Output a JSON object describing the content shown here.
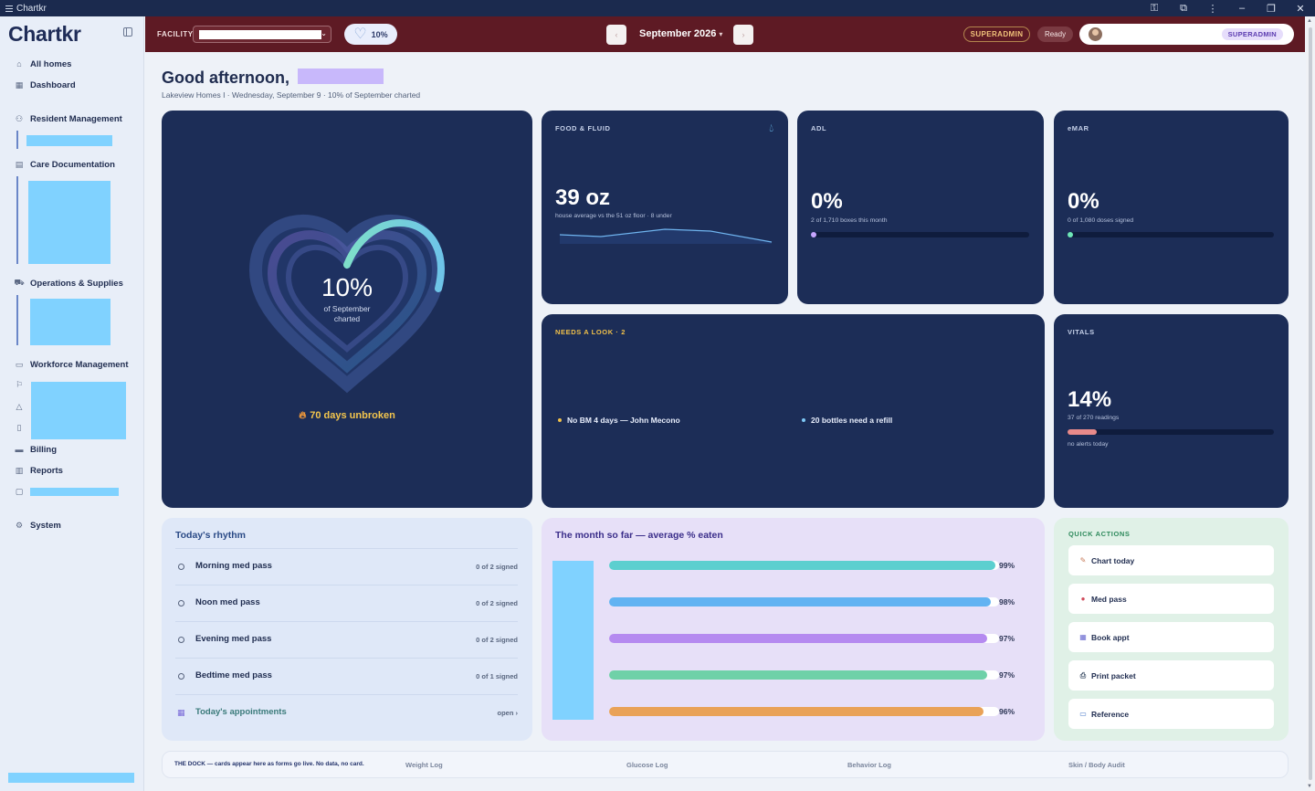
{
  "window": {
    "title": "Chartkr"
  },
  "sidebar": {
    "logo": "Chartkr",
    "items": [
      {
        "label": "All homes",
        "icon": "home-icon"
      },
      {
        "label": "Dashboard",
        "icon": "grid-icon"
      },
      {
        "label": "Resident Management",
        "icon": "users-icon"
      },
      {
        "label": "Care Documentation",
        "icon": "clipboard-icon"
      },
      {
        "label": "Operations & Supplies",
        "icon": "cart-icon"
      },
      {
        "label": "Workforce Management",
        "icon": "briefcase-icon"
      },
      {
        "label": "Billing",
        "icon": "card-icon"
      },
      {
        "label": "Reports",
        "icon": "chart-icon"
      },
      {
        "label": "System",
        "icon": "gear-icon"
      }
    ]
  },
  "topbar": {
    "facility_label": "FACILITY",
    "progress_pct": "10%",
    "month": "September 2026",
    "role": "SUPERADMIN",
    "status": "Ready",
    "user_role": "SUPERADMIN"
  },
  "header": {
    "greeting": "Good afternoon,",
    "subline": "Lakeview Homes I · Wednesday, September 9 · 10% of September charted"
  },
  "hero": {
    "pct": "10%",
    "pct_value": 0.1,
    "caption_line1": "of September",
    "caption_line2": "charted",
    "streak": "70 days unbroken"
  },
  "food": {
    "label": "FOOD & FLUID",
    "value": "39 oz",
    "sub": "house average vs the 51 oz floor · 8 under"
  },
  "adl": {
    "label": "ADL",
    "value": "0%",
    "sub": "2 of 1,710 boxes this month",
    "fill": 0.0,
    "color": "#c7a6ff"
  },
  "emar": {
    "label": "eMAR",
    "value": "0%",
    "sub": "0 of 1,080 doses signed",
    "fill": 0.0,
    "color": "#6ee7b7"
  },
  "needs": {
    "label": "NEEDS A LOOK · 2",
    "items": [
      {
        "text": "No BM 4 days — John Mecono",
        "color": "#f0c04a"
      },
      {
        "text": "20 bottles need a refill",
        "color": "#7ec8f5"
      }
    ]
  },
  "vitals": {
    "label": "VITALS",
    "value": "14%",
    "sub": "37 of 270 readings",
    "fill": 0.14,
    "note": "no alerts today",
    "color": "#e88a8a"
  },
  "rhythm": {
    "title": "Today's rhythm",
    "rows": [
      {
        "label": "Morning med pass",
        "count": "0 of 2 signed"
      },
      {
        "label": "Noon med pass",
        "count": "0 of 2 signed"
      },
      {
        "label": "Evening med pass",
        "count": "0 of 2 signed"
      },
      {
        "label": "Bedtime med pass",
        "count": "0 of 1 signed"
      }
    ],
    "appointments": {
      "label": "Today's appointments",
      "action": "open ›"
    }
  },
  "month_chart": {
    "title": "The month so far — average % eaten"
  },
  "chart_data": {
    "type": "bar",
    "title": "The month so far — average % eaten",
    "values": [
      99,
      98,
      97,
      97,
      96
    ],
    "value_labels": [
      "99%",
      "98%",
      "97%",
      "97%",
      "96%"
    ],
    "colors": [
      "#5ccfcf",
      "#62b3f2",
      "#b58af0",
      "#6fd1a8",
      "#e9a257"
    ],
    "ylim": [
      0,
      100
    ]
  },
  "quick_actions": {
    "title": "QUICK ACTIONS",
    "items": [
      {
        "label": "Chart today",
        "icon": "pencil-icon"
      },
      {
        "label": "Med pass",
        "icon": "pill-icon"
      },
      {
        "label": "Book appt",
        "icon": "calendar-icon"
      },
      {
        "label": "Print packet",
        "icon": "printer-icon"
      },
      {
        "label": "Reference",
        "icon": "book-icon"
      }
    ]
  },
  "dock": {
    "note": "THE DOCK — cards appear here as forms go live. No data, no card.",
    "items": [
      "Weight Log",
      "Glucose Log",
      "Behavior Log",
      "Skin / Body Audit"
    ]
  }
}
